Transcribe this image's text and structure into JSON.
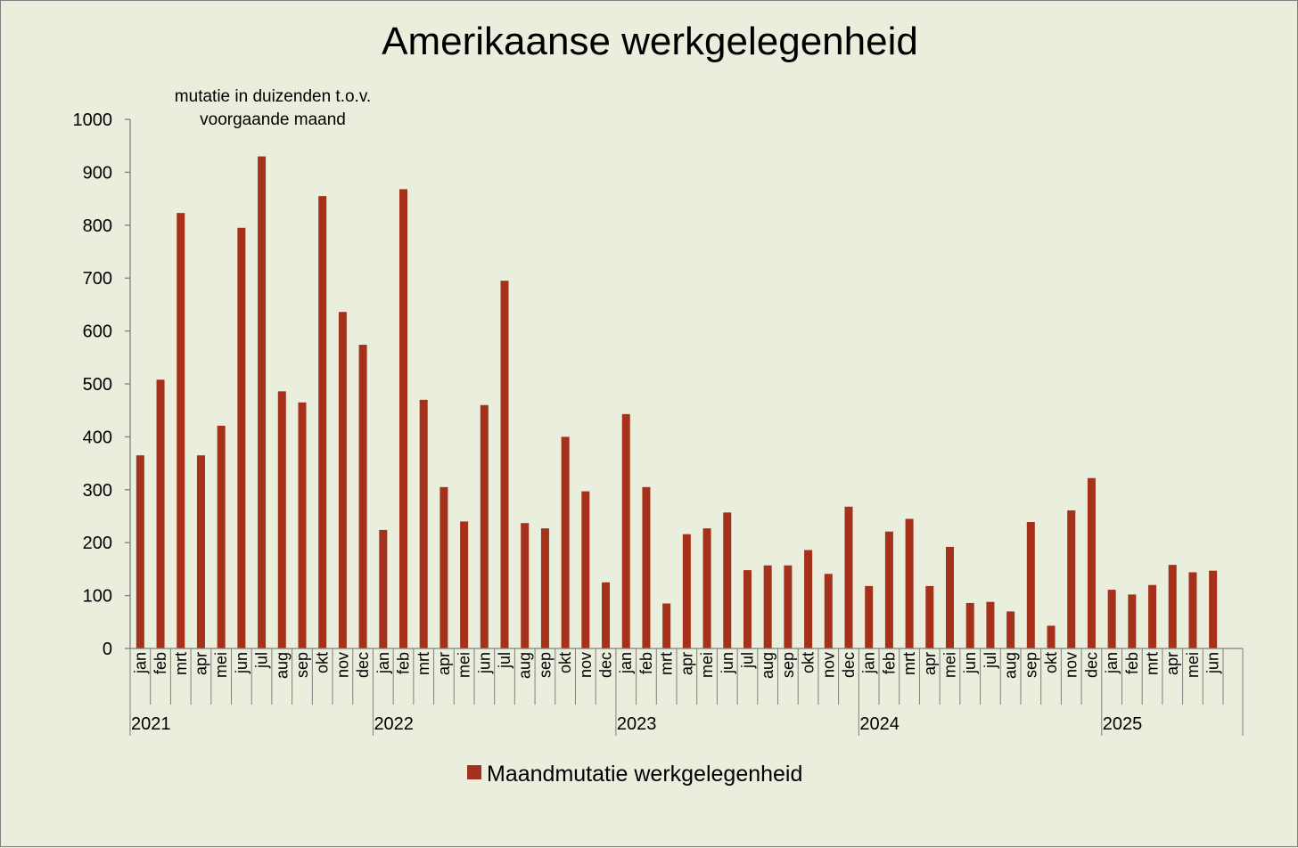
{
  "chart_data": {
    "type": "bar",
    "title": "Amerikaanse werkgelegenheid",
    "subtitle_lines": [
      "mutatie in duizenden t.o.v.",
      "voorgaande maand"
    ],
    "ylim": [
      0,
      1000
    ],
    "yticks": [
      0,
      100,
      200,
      300,
      400,
      500,
      600,
      700,
      800,
      900,
      1000
    ],
    "years": [
      {
        "label": "2021",
        "months": 12
      },
      {
        "label": "2022",
        "months": 12
      },
      {
        "label": "2023",
        "months": 12
      },
      {
        "label": "2024",
        "months": 12
      },
      {
        "label": "2025",
        "months": 6
      }
    ],
    "categories": [
      "jan",
      "feb",
      "mrt",
      "apr",
      "mei",
      "jun",
      "jul",
      "aug",
      "sep",
      "okt",
      "nov",
      "dec",
      "jan",
      "feb",
      "mrt",
      "apr",
      "mei",
      "jun",
      "jul",
      "aug",
      "sep",
      "okt",
      "nov",
      "dec",
      "jan",
      "feb",
      "mrt",
      "apr",
      "mei",
      "jun",
      "jul",
      "aug",
      "sep",
      "okt",
      "nov",
      "dec",
      "jan",
      "feb",
      "mrt",
      "apr",
      "mei",
      "jun",
      "jul",
      "aug",
      "sep",
      "okt",
      "nov",
      "dec",
      "jan",
      "feb",
      "mrt",
      "apr",
      "mei",
      "jun"
    ],
    "series": [
      {
        "name": "Maandmutatie werkgelegenheid",
        "color": "#a5311a",
        "values": [
          365,
          508,
          823,
          365,
          421,
          795,
          930,
          486,
          465,
          855,
          636,
          574,
          224,
          868,
          470,
          305,
          240,
          460,
          695,
          237,
          227,
          400,
          297,
          125,
          443,
          305,
          85,
          216,
          227,
          257,
          148,
          157,
          157,
          186,
          141,
          268,
          118,
          221,
          245,
          118,
          192,
          86,
          88,
          70,
          239,
          43,
          261,
          322,
          111,
          102,
          120,
          158,
          144,
          147
        ]
      }
    ],
    "legend_position": "bottom",
    "grid": false
  }
}
